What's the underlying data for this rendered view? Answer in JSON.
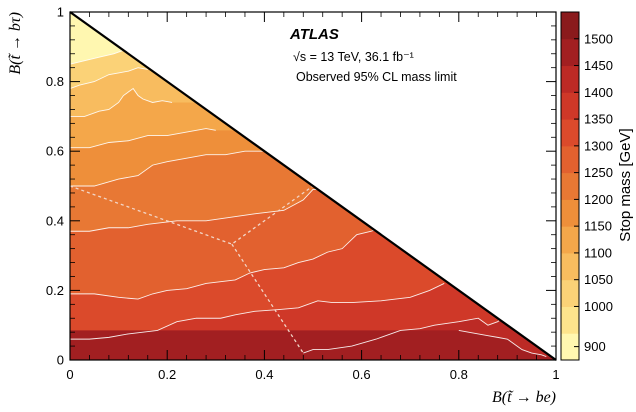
{
  "chart_data": {
    "type": "heatmap",
    "xlabel": "B(t̃ → be)",
    "ylabel": "B(t̃ → bτ)",
    "xlim": [
      0,
      1
    ],
    "ylim": [
      0,
      1
    ],
    "x_ticks": [
      "0",
      "0.2",
      "0.4",
      "0.6",
      "0.8",
      "1"
    ],
    "y_ticks": [
      "0",
      "0.2",
      "0.4",
      "0.6",
      "0.8",
      "1"
    ],
    "colorbar": {
      "label": "Stop mass [GeV]",
      "ticks": [
        "900",
        "1000",
        "1050",
        "1100",
        "1150",
        "1200",
        "1250",
        "1300",
        "1350",
        "1400",
        "1450",
        "1500"
      ],
      "colors": [
        "#fff7b0",
        "#fde48c",
        "#fbd277",
        "#f8bc5f",
        "#f4a74a",
        "#ee8f3a",
        "#e87834",
        "#e2612f",
        "#db4a2b",
        "#cf3828",
        "#bc2a25",
        "#a21f21",
        "#8a1a1c"
      ]
    },
    "annotations": {
      "experiment": "ATLAS",
      "energy_lumi": "√s = 13 TeV, 36.1 fb⁻¹",
      "description": "Observed 95% CL mass limit"
    },
    "contour_levels": [
      1500,
      1450,
      1400,
      1350,
      1300,
      1250,
      1200,
      1150,
      1100,
      1050,
      1000
    ],
    "contours": [
      {
        "level": 1450,
        "points": [
          [
            0.8,
            0.085
          ],
          [
            0.82,
            0.08
          ],
          [
            0.84,
            0.075
          ],
          [
            0.86,
            0.07
          ],
          [
            0.88,
            0.065
          ],
          [
            0.9,
            0.06
          ],
          [
            0.915,
            0.045
          ],
          [
            0.93,
            0.03
          ],
          [
            0.95,
            0.02
          ],
          [
            0.97,
            0.015
          ],
          [
            0.98,
            0.01
          ]
        ]
      },
      {
        "level": 1400,
        "points": [
          [
            0.48,
            0.02
          ],
          [
            0.5,
            0.03
          ],
          [
            0.53,
            0.03
          ],
          [
            0.58,
            0.04
          ],
          [
            0.63,
            0.06
          ],
          [
            0.68,
            0.085
          ],
          [
            0.72,
            0.09
          ],
          [
            0.75,
            0.1
          ],
          [
            0.8,
            0.11
          ],
          [
            0.84,
            0.12
          ],
          [
            0.86,
            0.1
          ],
          [
            0.88,
            0.11
          ],
          [
            0.89,
            0.12
          ],
          [
            0.9,
            0.11
          ],
          [
            0.92,
            0.09
          ],
          [
            0.95,
            0.05
          ]
        ]
      },
      {
        "level": 1350,
        "points": [
          [
            0.0,
            0.06
          ],
          [
            0.04,
            0.06
          ],
          [
            0.08,
            0.065
          ],
          [
            0.12,
            0.075
          ],
          [
            0.18,
            0.085
          ],
          [
            0.22,
            0.11
          ],
          [
            0.26,
            0.12
          ],
          [
            0.31,
            0.12
          ],
          [
            0.34,
            0.13
          ],
          [
            0.38,
            0.14
          ],
          [
            0.43,
            0.145
          ],
          [
            0.47,
            0.15
          ],
          [
            0.49,
            0.16
          ],
          [
            0.51,
            0.17
          ],
          [
            0.54,
            0.165
          ],
          [
            0.58,
            0.165
          ],
          [
            0.64,
            0.17
          ],
          [
            0.7,
            0.18
          ],
          [
            0.74,
            0.2
          ],
          [
            0.77,
            0.22
          ]
        ]
      },
      {
        "level": 1300,
        "points": [
          [
            0.0,
            0.19
          ],
          [
            0.05,
            0.19
          ],
          [
            0.1,
            0.18
          ],
          [
            0.14,
            0.175
          ],
          [
            0.17,
            0.19
          ],
          [
            0.2,
            0.2
          ],
          [
            0.24,
            0.205
          ],
          [
            0.28,
            0.22
          ],
          [
            0.31,
            0.225
          ],
          [
            0.34,
            0.23
          ],
          [
            0.37,
            0.25
          ],
          [
            0.4,
            0.26
          ],
          [
            0.44,
            0.265
          ],
          [
            0.47,
            0.28
          ],
          [
            0.5,
            0.29
          ],
          [
            0.53,
            0.31
          ],
          [
            0.56,
            0.32
          ],
          [
            0.59,
            0.36
          ],
          [
            0.62,
            0.37
          ],
          [
            0.64,
            0.38
          ]
        ]
      },
      {
        "level": 1250,
        "points": [
          [
            0.0,
            0.37
          ],
          [
            0.04,
            0.37
          ],
          [
            0.08,
            0.38
          ],
          [
            0.12,
            0.38
          ],
          [
            0.16,
            0.39
          ],
          [
            0.22,
            0.4
          ],
          [
            0.28,
            0.4
          ],
          [
            0.33,
            0.41
          ],
          [
            0.38,
            0.42
          ],
          [
            0.44,
            0.43
          ],
          [
            0.48,
            0.46
          ],
          [
            0.5,
            0.49
          ],
          [
            0.51,
            0.49
          ]
        ]
      },
      {
        "level": 1200,
        "points": [
          [
            0.0,
            0.5
          ],
          [
            0.05,
            0.5
          ],
          [
            0.1,
            0.52
          ],
          [
            0.14,
            0.53
          ],
          [
            0.17,
            0.56
          ],
          [
            0.2,
            0.57
          ],
          [
            0.24,
            0.58
          ],
          [
            0.28,
            0.59
          ],
          [
            0.32,
            0.59
          ],
          [
            0.36,
            0.6
          ],
          [
            0.4,
            0.6
          ]
        ]
      },
      {
        "level": 1150,
        "points": [
          [
            0.0,
            0.61
          ],
          [
            0.04,
            0.61
          ],
          [
            0.08,
            0.625
          ],
          [
            0.12,
            0.63
          ],
          [
            0.16,
            0.645
          ],
          [
            0.2,
            0.645
          ],
          [
            0.24,
            0.655
          ],
          [
            0.28,
            0.665
          ],
          [
            0.3,
            0.66
          ]
        ]
      },
      {
        "level": 1100,
        "points": [
          [
            0.0,
            0.7
          ],
          [
            0.03,
            0.7
          ],
          [
            0.06,
            0.715
          ],
          [
            0.08,
            0.72
          ],
          [
            0.1,
            0.74
          ],
          [
            0.11,
            0.76
          ],
          [
            0.12,
            0.77
          ],
          [
            0.13,
            0.78
          ],
          [
            0.14,
            0.76
          ],
          [
            0.15,
            0.75
          ],
          [
            0.17,
            0.74
          ],
          [
            0.19,
            0.745
          ],
          [
            0.21,
            0.74
          ]
        ]
      },
      {
        "level": 1050,
        "points": [
          [
            0.0,
            0.78
          ],
          [
            0.02,
            0.79
          ],
          [
            0.05,
            0.8
          ],
          [
            0.08,
            0.82
          ],
          [
            0.1,
            0.825
          ],
          [
            0.12,
            0.83
          ],
          [
            0.14,
            0.84
          ],
          [
            0.16,
            0.835
          ]
        ]
      },
      {
        "level": 1000,
        "points": [
          [
            0.0,
            0.85
          ],
          [
            0.03,
            0.86
          ],
          [
            0.06,
            0.87
          ],
          [
            0.09,
            0.88
          ],
          [
            0.11,
            0.89
          ]
        ]
      }
    ],
    "boundary_lines": [
      {
        "style": "dashed",
        "points": [
          [
            0.0,
            0.5
          ],
          [
            0.333,
            0.333
          ],
          [
            0.5,
            0.5
          ]
        ]
      },
      {
        "style": "dashed",
        "points": [
          [
            0.333,
            0.333
          ],
          [
            0.48,
            0.02
          ]
        ]
      }
    ]
  }
}
